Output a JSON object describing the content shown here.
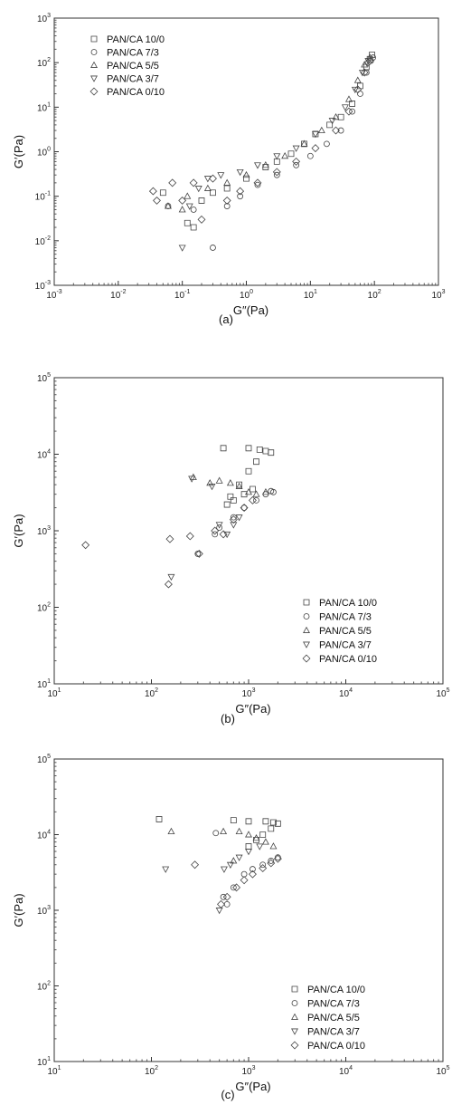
{
  "chart_data": [
    {
      "type": "scatter",
      "panel": "(a)",
      "xlabel": "G″(Pa)",
      "ylabel": "G′(Pa)",
      "xscale": "log",
      "yscale": "log",
      "xlim": [
        0.001,
        1000
      ],
      "ylim": [
        0.001,
        1000
      ],
      "legend_position": "top-left",
      "series": [
        {
          "name": "PAN/CA 10/0",
          "marker": "square",
          "points": [
            [
              0.05,
              0.12
            ],
            [
              0.12,
              0.025
            ],
            [
              0.15,
              0.02
            ],
            [
              0.2,
              0.08
            ],
            [
              0.3,
              0.12
            ],
            [
              0.5,
              0.15
            ],
            [
              1,
              0.25
            ],
            [
              2,
              0.45
            ],
            [
              3,
              0.6
            ],
            [
              5,
              0.9
            ],
            [
              8,
              1.5
            ],
            [
              12,
              2.5
            ],
            [
              20,
              4
            ],
            [
              30,
              6
            ],
            [
              45,
              12
            ],
            [
              60,
              30
            ],
            [
              75,
              80
            ],
            [
              85,
              120
            ],
            [
              92,
              150
            ]
          ]
        },
        {
          "name": "PAN/CA 7/3",
          "marker": "circle",
          "points": [
            [
              0.06,
              0.06
            ],
            [
              0.15,
              0.05
            ],
            [
              0.3,
              0.007
            ],
            [
              0.5,
              0.06
            ],
            [
              0.8,
              0.1
            ],
            [
              1.5,
              0.18
            ],
            [
              3,
              0.3
            ],
            [
              6,
              0.5
            ],
            [
              10,
              0.8
            ],
            [
              18,
              1.5
            ],
            [
              30,
              3
            ],
            [
              45,
              8
            ],
            [
              60,
              20
            ],
            [
              75,
              60
            ],
            [
              88,
              110
            ],
            [
              95,
              130
            ]
          ]
        },
        {
          "name": "PAN/CA 5/5",
          "marker": "triangle-up",
          "points": [
            [
              0.06,
              0.06
            ],
            [
              0.1,
              0.05
            ],
            [
              0.12,
              0.1
            ],
            [
              0.25,
              0.15
            ],
            [
              0.5,
              0.2
            ],
            [
              1,
              0.3
            ],
            [
              2,
              0.5
            ],
            [
              4,
              0.8
            ],
            [
              8,
              1.5
            ],
            [
              15,
              3
            ],
            [
              25,
              6
            ],
            [
              40,
              15
            ],
            [
              55,
              40
            ],
            [
              70,
              90
            ],
            [
              85,
              130
            ]
          ]
        },
        {
          "name": "PAN/CA 3/7",
          "marker": "triangle-down",
          "points": [
            [
              0.1,
              0.007
            ],
            [
              0.13,
              0.06
            ],
            [
              0.18,
              0.15
            ],
            [
              0.25,
              0.25
            ],
            [
              0.4,
              0.3
            ],
            [
              0.8,
              0.35
            ],
            [
              1.5,
              0.5
            ],
            [
              3,
              0.8
            ],
            [
              6,
              1.2
            ],
            [
              12,
              2.5
            ],
            [
              22,
              5
            ],
            [
              35,
              10
            ],
            [
              50,
              25
            ],
            [
              65,
              60
            ],
            [
              80,
              110
            ]
          ]
        },
        {
          "name": "PAN/CA 0/10",
          "marker": "diamond",
          "points": [
            [
              0.035,
              0.13
            ],
            [
              0.04,
              0.08
            ],
            [
              0.07,
              0.2
            ],
            [
              0.1,
              0.08
            ],
            [
              0.15,
              0.2
            ],
            [
              0.2,
              0.03
            ],
            [
              0.3,
              0.25
            ],
            [
              0.5,
              0.08
            ],
            [
              0.8,
              0.13
            ],
            [
              1.5,
              0.2
            ],
            [
              3,
              0.35
            ],
            [
              6,
              0.6
            ],
            [
              12,
              1.2
            ],
            [
              25,
              3
            ],
            [
              40,
              8
            ],
            [
              55,
              25
            ],
            [
              70,
              60
            ],
            [
              80,
              100
            ]
          ]
        }
      ]
    },
    {
      "type": "scatter",
      "panel": "(b)",
      "xlabel": "G″(Pa)",
      "ylabel": "G′(Pa)",
      "xscale": "log",
      "yscale": "log",
      "xlim": [
        10,
        100000
      ],
      "ylim": [
        10,
        100000
      ],
      "legend_position": "bottom-right",
      "series": [
        {
          "name": "PAN/CA 10/0",
          "marker": "square",
          "points": [
            [
              550,
              12000
            ],
            [
              1000,
              12000
            ],
            [
              1300,
              11500
            ],
            [
              1500,
              11000
            ],
            [
              1700,
              10500
            ],
            [
              1200,
              8000
            ],
            [
              1000,
              6000
            ],
            [
              800,
              4000
            ],
            [
              650,
              2800
            ],
            [
              600,
              2200
            ],
            [
              700,
              2500
            ],
            [
              900,
              3000
            ],
            [
              1100,
              3500
            ]
          ]
        },
        {
          "name": "PAN/CA 7/3",
          "marker": "circle",
          "points": [
            [
              300,
              500
            ],
            [
              450,
              900
            ],
            [
              500,
              1100
            ],
            [
              700,
              1500
            ],
            [
              900,
              2000
            ],
            [
              1200,
              2500
            ],
            [
              1500,
              3000
            ],
            [
              1700,
              3300
            ],
            [
              1800,
              3200
            ]
          ]
        },
        {
          "name": "PAN/CA 5/5",
          "marker": "triangle-up",
          "points": [
            [
              270,
              5000
            ],
            [
              400,
              4200
            ],
            [
              500,
              4500
            ],
            [
              650,
              4200
            ],
            [
              800,
              3800
            ],
            [
              1000,
              3200
            ],
            [
              1200,
              3000
            ],
            [
              1500,
              3200
            ]
          ]
        },
        {
          "name": "PAN/CA 3/7",
          "marker": "triangle-down",
          "points": [
            [
              160,
              250
            ],
            [
              260,
              4800
            ],
            [
              420,
              3800
            ],
            [
              500,
              1200
            ],
            [
              600,
              900
            ],
            [
              700,
              1200
            ],
            [
              800,
              1500
            ]
          ]
        },
        {
          "name": "PAN/CA 0/10",
          "marker": "diamond",
          "points": [
            [
              21,
              650
            ],
            [
              150,
              200
            ],
            [
              155,
              780
            ],
            [
              250,
              850
            ],
            [
              310,
              500
            ],
            [
              450,
              1000
            ],
            [
              550,
              900
            ],
            [
              700,
              1400
            ],
            [
              900,
              2000
            ],
            [
              1100,
              2500
            ]
          ]
        }
      ]
    },
    {
      "type": "scatter",
      "panel": "(c)",
      "xlabel": "G″(Pa)",
      "ylabel": "G′(Pa)",
      "xscale": "log",
      "yscale": "log",
      "xlim": [
        10,
        100000
      ],
      "ylim": [
        10,
        100000
      ],
      "legend_position": "bottom-right",
      "series": [
        {
          "name": "PAN/CA 10/0",
          "marker": "square",
          "points": [
            [
              120,
              16000
            ],
            [
              700,
              15500
            ],
            [
              1000,
              15000
            ],
            [
              1500,
              15000
            ],
            [
              1800,
              14500
            ],
            [
              2000,
              14000
            ],
            [
              1700,
              12000
            ],
            [
              1400,
              10000
            ],
            [
              1200,
              8500
            ],
            [
              1000,
              7000
            ]
          ]
        },
        {
          "name": "PAN/CA 7/3",
          "marker": "circle",
          "points": [
            [
              460,
              10500
            ],
            [
              550,
              1500
            ],
            [
              600,
              1200
            ],
            [
              700,
              2000
            ],
            [
              900,
              3000
            ],
            [
              1100,
              3500
            ],
            [
              1400,
              4000
            ],
            [
              1700,
              4500
            ],
            [
              2000,
              5000
            ]
          ]
        },
        {
          "name": "PAN/CA 5/5",
          "marker": "triangle-up",
          "points": [
            [
              160,
              11000
            ],
            [
              550,
              11000
            ],
            [
              700,
              4500
            ],
            [
              800,
              11000
            ],
            [
              1000,
              10000
            ],
            [
              1200,
              9000
            ],
            [
              1500,
              8000
            ],
            [
              1800,
              7000
            ]
          ]
        },
        {
          "name": "PAN/CA 3/7",
          "marker": "triangle-down",
          "points": [
            [
              140,
              3500
            ],
            [
              500,
              1000
            ],
            [
              560,
              3500
            ],
            [
              650,
              4000
            ],
            [
              800,
              5000
            ],
            [
              1000,
              6000
            ],
            [
              1300,
              7000
            ]
          ]
        },
        {
          "name": "PAN/CA 0/10",
          "marker": "diamond",
          "points": [
            [
              280,
              4000
            ],
            [
              520,
              1200
            ],
            [
              600,
              1500
            ],
            [
              750,
              2000
            ],
            [
              900,
              2500
            ],
            [
              1100,
              3000
            ],
            [
              1400,
              3600
            ],
            [
              1700,
              4200
            ],
            [
              2000,
              4800
            ]
          ]
        }
      ]
    }
  ]
}
